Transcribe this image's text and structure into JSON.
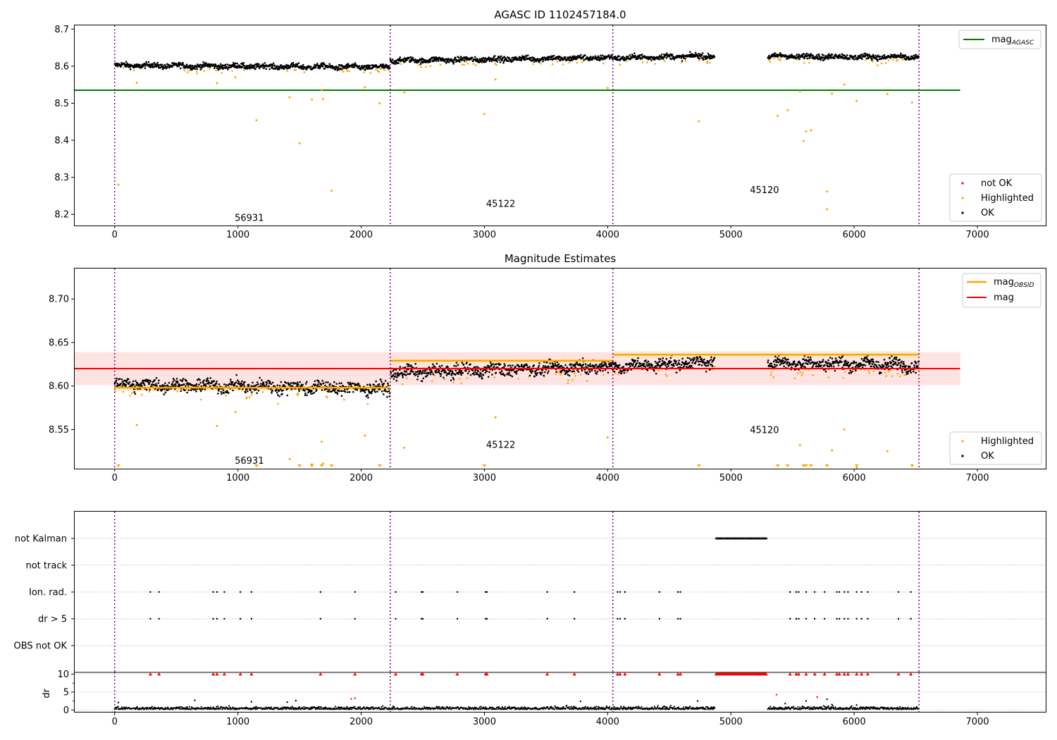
{
  "colors": {
    "ok": "#000000",
    "highlighted": "#ffa500",
    "not_ok": "#ff0000",
    "mag_agasc": "#008000",
    "mag": "#ff0000",
    "mag_obsid": "#ffa500",
    "obsid_boundary": "#800080",
    "mag_band": "#ffdcdc",
    "obsid_band": "#ffe6c8"
  },
  "chart_data": [
    {
      "type": "scatter",
      "title": "AGASC ID 1102457184.0",
      "xlim": [
        -330,
        7560
      ],
      "ylim": [
        8.17,
        8.71
      ],
      "x_ticks": [
        "0",
        "1000",
        "2000",
        "3000",
        "4000",
        "5000",
        "6000",
        "7000"
      ],
      "y_ticks": [
        "8.2",
        "8.3",
        "8.4",
        "8.5",
        "8.6",
        "8.7"
      ],
      "grid": false,
      "mag_agasc": 8.535,
      "mag_agasc_range": [
        -330,
        6860
      ],
      "obsid_boundaries": [
        0,
        2236,
        4042,
        6526
      ],
      "obsids": [
        {
          "label": "56931",
          "x": 1100,
          "y": 8.19
        },
        {
          "label": "45122",
          "x": 3140,
          "y": 8.228
        },
        {
          "label": "45120",
          "x": 5280,
          "y": 8.265
        }
      ],
      "segments": [
        {
          "x0": 0,
          "x1": 2236,
          "level_start": 8.602,
          "level_end": 8.597,
          "spread": 0.008
        },
        {
          "x0": 2236,
          "x1": 4042,
          "level_start": 8.615,
          "level_end": 8.623,
          "spread": 0.008
        },
        {
          "x0": 4042,
          "x1": 4870,
          "level_start": 8.622,
          "level_end": 8.628,
          "spread": 0.008
        },
        {
          "x0": 5300,
          "x1": 6526,
          "level_start": 8.627,
          "level_end": 8.624,
          "spread": 0.008
        }
      ],
      "highlighted_points": [
        [
          30,
          8.28
        ],
        [
          180,
          8.555
        ],
        [
          830,
          8.554
        ],
        [
          980,
          8.57
        ],
        [
          1150,
          8.454
        ],
        [
          1500,
          8.392
        ],
        [
          1420,
          8.516
        ],
        [
          1600,
          8.51
        ],
        [
          1680,
          8.536
        ],
        [
          1690,
          8.511
        ],
        [
          1760,
          8.264
        ],
        [
          2030,
          8.543
        ],
        [
          2150,
          8.5
        ],
        [
          2350,
          8.529
        ],
        [
          3000,
          8.471
        ],
        [
          3090,
          8.564
        ],
        [
          4000,
          8.541
        ],
        [
          4740,
          8.451
        ],
        [
          5380,
          8.466
        ],
        [
          5460,
          8.481
        ],
        [
          5560,
          8.532
        ],
        [
          5590,
          8.398
        ],
        [
          5610,
          8.424
        ],
        [
          5650,
          8.427
        ],
        [
          5780,
          8.262
        ],
        [
          5780,
          8.214
        ],
        [
          5820,
          8.526
        ],
        [
          5920,
          8.55
        ],
        [
          6020,
          8.506
        ],
        [
          6270,
          8.525
        ],
        [
          6470,
          8.502
        ]
      ],
      "legend": [
        {
          "label": "mag",
          "sub": "AGASC",
          "kind": "line",
          "color": "#008000"
        },
        {
          "label": "not OK",
          "kind": "point",
          "color": "#ff0000"
        },
        {
          "label": "Highlighted",
          "kind": "point",
          "color": "#ffa500"
        },
        {
          "label": "OK",
          "kind": "point",
          "color": "#000000"
        }
      ]
    },
    {
      "type": "scatter",
      "title": "Magnitude Estimates",
      "xlim": [
        -330,
        7560
      ],
      "ylim": [
        8.505,
        8.735
      ],
      "x_ticks": [
        "0",
        "1000",
        "2000",
        "3000",
        "4000",
        "5000",
        "6000",
        "7000"
      ],
      "y_ticks": [
        "8.55",
        "8.60",
        "8.65",
        "8.70"
      ],
      "grid": false,
      "mag": 8.62,
      "mag_band": [
        8.601,
        8.639
      ],
      "mag_range": [
        -330,
        6860
      ],
      "mag_obsid": [
        {
          "x0": 0,
          "x1": 2236,
          "value": 8.598
        },
        {
          "x0": 2236,
          "x1": 4042,
          "value": 8.629
        },
        {
          "x0": 4042,
          "x1": 6526,
          "value": 8.636
        }
      ],
      "obsids": [
        {
          "label": "56931",
          "x": 1100,
          "y": 8.514
        },
        {
          "label": "45122",
          "x": 3140,
          "y": 8.532
        },
        {
          "label": "45120",
          "x": 5280,
          "y": 8.549
        }
      ],
      "off_scale_markers": [
        30,
        1150,
        1500,
        1600,
        1680,
        1760,
        2150,
        3000,
        4740,
        5380,
        5460,
        5590,
        5610,
        5650,
        5780,
        6020,
        6470
      ],
      "legend_top": [
        {
          "label": "mag",
          "sub": "OBSID",
          "kind": "line",
          "color": "#ffa500"
        },
        {
          "label": "mag",
          "kind": "line",
          "color": "#ff0000"
        }
      ],
      "legend_bottom": [
        {
          "label": "Highlighted",
          "kind": "point",
          "color": "#ffa500"
        },
        {
          "label": "OK",
          "kind": "point",
          "color": "#000000"
        }
      ]
    },
    {
      "type": "scatter",
      "title": "",
      "xlim": [
        -330,
        7560
      ],
      "categories": [
        "not Kalman",
        "not track",
        "Ion. rad.",
        "dr > 5",
        "OBS not OK"
      ],
      "x_ticks": [
        "0",
        "1000",
        "2000",
        "3000",
        "4000",
        "5000",
        "6000",
        "7000"
      ],
      "grid": "horizontal-dotted",
      "not_kalman_range": [
        4880,
        5290
      ],
      "flag_times": [
        290,
        360,
        800,
        830,
        890,
        1020,
        1110,
        1670,
        1950,
        2280,
        2490,
        2500,
        2780,
        3010,
        3020,
        3510,
        3730,
        4080,
        4100,
        4140,
        4420,
        4570,
        4590,
        5480,
        5530,
        5550,
        5610,
        5680,
        5760,
        5860,
        5880,
        5920,
        5950,
        6020,
        6060,
        6110,
        6360,
        6460
      ]
    },
    {
      "type": "scatter",
      "title": "",
      "ylabel": "dr",
      "xlim": [
        -330,
        7560
      ],
      "ylim": [
        -0.5,
        10.5
      ],
      "x_ticks": [
        "0",
        "1000",
        "2000",
        "3000",
        "4000",
        "5000",
        "6000",
        "7000"
      ],
      "y_ticks": [
        "0",
        "5",
        "10"
      ],
      "dr_outliers": [
        [
          30,
          2.1
        ],
        [
          650,
          2.7
        ],
        [
          1110,
          2.3
        ],
        [
          1400,
          2.2
        ],
        [
          1470,
          2.6
        ],
        [
          1920,
          3.1
        ],
        [
          1950,
          3.3
        ],
        [
          3780,
          2.4
        ],
        [
          4730,
          2.5
        ],
        [
          5370,
          4.3
        ],
        [
          5440,
          1.8
        ],
        [
          5610,
          2.5
        ],
        [
          5700,
          3.6
        ],
        [
          5780,
          3.0
        ],
        [
          5820,
          1.5
        ],
        [
          6020,
          1.4
        ]
      ]
    }
  ]
}
